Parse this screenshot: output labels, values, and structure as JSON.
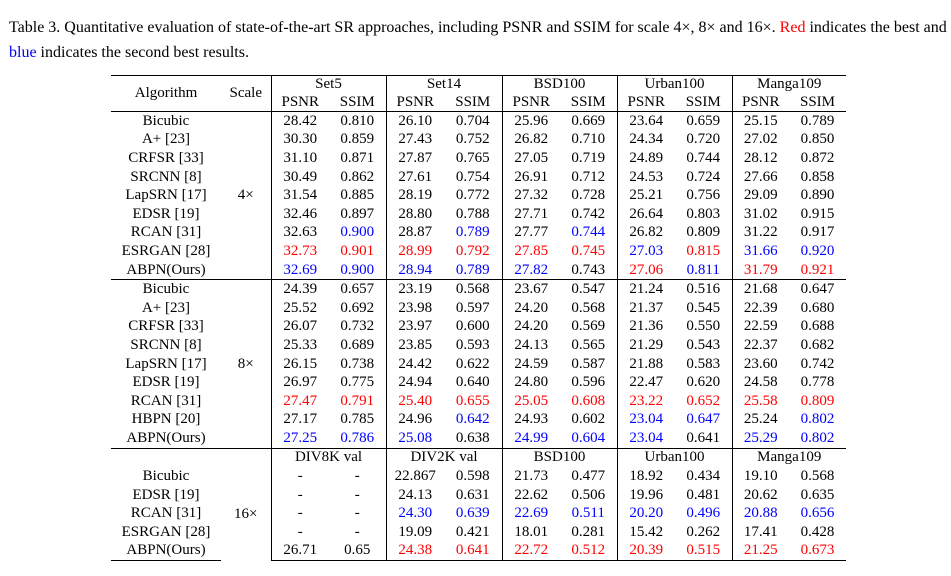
{
  "caption": {
    "prefix": "Table 3. Quantitative evaluation of state-of-the-art SR approaches, including PSNR and SSIM for scale 4×, 8× and 16×. ",
    "red_word": "Red",
    "middle": " indicates the best and ",
    "blue_word": "blue",
    "suffix": " indicates the second best results."
  },
  "colors": {
    "best": "#ff0000",
    "second": "#0000ff"
  },
  "header": {
    "algorithm": "Algorithm",
    "scale": "Scale",
    "datasets": [
      "Set5",
      "Set14",
      "BSD100",
      "Urban100",
      "Manga109"
    ],
    "metrics": [
      "PSNR",
      "SSIM"
    ]
  },
  "sections": [
    {
      "scale": "4×",
      "rows": [
        {
          "algo": "Bicubic",
          "v": [
            [
              "28.42",
              ""
            ],
            [
              "0.810",
              ""
            ],
            [
              "26.10",
              ""
            ],
            [
              "0.704",
              ""
            ],
            [
              "25.96",
              ""
            ],
            [
              "0.669",
              ""
            ],
            [
              "23.64",
              ""
            ],
            [
              "0.659",
              ""
            ],
            [
              "25.15",
              ""
            ],
            [
              "0.789",
              ""
            ]
          ]
        },
        {
          "algo": "A+ [23]",
          "v": [
            [
              "30.30",
              ""
            ],
            [
              "0.859",
              ""
            ],
            [
              "27.43",
              ""
            ],
            [
              "0.752",
              ""
            ],
            [
              "26.82",
              ""
            ],
            [
              "0.710",
              ""
            ],
            [
              "24.34",
              ""
            ],
            [
              "0.720",
              ""
            ],
            [
              "27.02",
              ""
            ],
            [
              "0.850",
              ""
            ]
          ]
        },
        {
          "algo": "CRFSR [33]",
          "v": [
            [
              "31.10",
              ""
            ],
            [
              "0.871",
              ""
            ],
            [
              "27.87",
              ""
            ],
            [
              "0.765",
              ""
            ],
            [
              "27.05",
              ""
            ],
            [
              "0.719",
              ""
            ],
            [
              "24.89",
              ""
            ],
            [
              "0.744",
              ""
            ],
            [
              "28.12",
              ""
            ],
            [
              "0.872",
              ""
            ]
          ]
        },
        {
          "algo": "SRCNN [8]",
          "v": [
            [
              "30.49",
              ""
            ],
            [
              "0.862",
              ""
            ],
            [
              "27.61",
              ""
            ],
            [
              "0.754",
              ""
            ],
            [
              "26.91",
              ""
            ],
            [
              "0.712",
              ""
            ],
            [
              "24.53",
              ""
            ],
            [
              "0.724",
              ""
            ],
            [
              "27.66",
              ""
            ],
            [
              "0.858",
              ""
            ]
          ]
        },
        {
          "algo": "LapSRN [17]",
          "v": [
            [
              "31.54",
              ""
            ],
            [
              "0.885",
              ""
            ],
            [
              "28.19",
              ""
            ],
            [
              "0.772",
              ""
            ],
            [
              "27.32",
              ""
            ],
            [
              "0.728",
              ""
            ],
            [
              "25.21",
              ""
            ],
            [
              "0.756",
              ""
            ],
            [
              "29.09",
              ""
            ],
            [
              "0.890",
              ""
            ]
          ]
        },
        {
          "algo": "EDSR [19]",
          "v": [
            [
              "32.46",
              ""
            ],
            [
              "0.897",
              ""
            ],
            [
              "28.80",
              ""
            ],
            [
              "0.788",
              ""
            ],
            [
              "27.71",
              ""
            ],
            [
              "0.742",
              ""
            ],
            [
              "26.64",
              ""
            ],
            [
              "0.803",
              ""
            ],
            [
              "31.02",
              ""
            ],
            [
              "0.915",
              ""
            ]
          ]
        },
        {
          "algo": "RCAN [31]",
          "v": [
            [
              "32.63",
              ""
            ],
            [
              "0.900",
              "b"
            ],
            [
              "28.87",
              ""
            ],
            [
              "0.789",
              "b"
            ],
            [
              "27.77",
              ""
            ],
            [
              "0.744",
              "b"
            ],
            [
              "26.82",
              ""
            ],
            [
              "0.809",
              ""
            ],
            [
              "31.22",
              ""
            ],
            [
              "0.917",
              ""
            ]
          ]
        },
        {
          "algo": "ESRGAN [28]",
          "v": [
            [
              "32.73",
              "r"
            ],
            [
              "0.901",
              "r"
            ],
            [
              "28.99",
              "r"
            ],
            [
              "0.792",
              "r"
            ],
            [
              "27.85",
              "r"
            ],
            [
              "0.745",
              "r"
            ],
            [
              "27.03",
              "b"
            ],
            [
              "0.815",
              "r"
            ],
            [
              "31.66",
              "b"
            ],
            [
              "0.920",
              "b"
            ]
          ]
        },
        {
          "algo": "ABPN(Ours)",
          "v": [
            [
              "32.69",
              "b"
            ],
            [
              "0.900",
              "b"
            ],
            [
              "28.94",
              "b"
            ],
            [
              "0.789",
              "b"
            ],
            [
              "27.82",
              "b"
            ],
            [
              "0.743",
              ""
            ],
            [
              "27.06",
              "r"
            ],
            [
              "0.811",
              "b"
            ],
            [
              "31.79",
              "r"
            ],
            [
              "0.921",
              "r"
            ]
          ]
        }
      ]
    },
    {
      "scale": "8×",
      "rows": [
        {
          "algo": "Bicubic",
          "v": [
            [
              "24.39",
              ""
            ],
            [
              "0.657",
              ""
            ],
            [
              "23.19",
              ""
            ],
            [
              "0.568",
              ""
            ],
            [
              "23.67",
              ""
            ],
            [
              "0.547",
              ""
            ],
            [
              "21.24",
              ""
            ],
            [
              "0.516",
              ""
            ],
            [
              "21.68",
              ""
            ],
            [
              "0.647",
              ""
            ]
          ]
        },
        {
          "algo": "A+ [23]",
          "v": [
            [
              "25.52",
              ""
            ],
            [
              "0.692",
              ""
            ],
            [
              "23.98",
              ""
            ],
            [
              "0.597",
              ""
            ],
            [
              "24.20",
              ""
            ],
            [
              "0.568",
              ""
            ],
            [
              "21.37",
              ""
            ],
            [
              "0.545",
              ""
            ],
            [
              "22.39",
              ""
            ],
            [
              "0.680",
              ""
            ]
          ]
        },
        {
          "algo": "CRFSR [33]",
          "v": [
            [
              "26.07",
              ""
            ],
            [
              "0.732",
              ""
            ],
            [
              "23.97",
              ""
            ],
            [
              "0.600",
              ""
            ],
            [
              "24.20",
              ""
            ],
            [
              "0.569",
              ""
            ],
            [
              "21.36",
              ""
            ],
            [
              "0.550",
              ""
            ],
            [
              "22.59",
              ""
            ],
            [
              "0.688",
              ""
            ]
          ]
        },
        {
          "algo": "SRCNN [8]",
          "v": [
            [
              "25.33",
              ""
            ],
            [
              "0.689",
              ""
            ],
            [
              "23.85",
              ""
            ],
            [
              "0.593",
              ""
            ],
            [
              "24.13",
              ""
            ],
            [
              "0.565",
              ""
            ],
            [
              "21.29",
              ""
            ],
            [
              "0.543",
              ""
            ],
            [
              "22.37",
              ""
            ],
            [
              "0.682",
              ""
            ]
          ]
        },
        {
          "algo": "LapSRN [17]",
          "v": [
            [
              "26.15",
              ""
            ],
            [
              "0.738",
              ""
            ],
            [
              "24.42",
              ""
            ],
            [
              "0.622",
              ""
            ],
            [
              "24.59",
              ""
            ],
            [
              "0.587",
              ""
            ],
            [
              "21.88",
              ""
            ],
            [
              "0.583",
              ""
            ],
            [
              "23.60",
              ""
            ],
            [
              "0.742",
              ""
            ]
          ]
        },
        {
          "algo": "EDSR [19]",
          "v": [
            [
              "26.97",
              ""
            ],
            [
              "0.775",
              ""
            ],
            [
              "24.94",
              ""
            ],
            [
              "0.640",
              ""
            ],
            [
              "24.80",
              ""
            ],
            [
              "0.596",
              ""
            ],
            [
              "22.47",
              ""
            ],
            [
              "0.620",
              ""
            ],
            [
              "24.58",
              ""
            ],
            [
              "0.778",
              ""
            ]
          ]
        },
        {
          "algo": "RCAN [31]",
          "v": [
            [
              "27.47",
              "r"
            ],
            [
              "0.791",
              "r"
            ],
            [
              "25.40",
              "r"
            ],
            [
              "0.655",
              "r"
            ],
            [
              "25.05",
              "r"
            ],
            [
              "0.608",
              "r"
            ],
            [
              "23.22",
              "r"
            ],
            [
              "0.652",
              "r"
            ],
            [
              "25.58",
              "r"
            ],
            [
              "0.809",
              "r"
            ]
          ]
        },
        {
          "algo": "HBPN [20]",
          "v": [
            [
              "27.17",
              ""
            ],
            [
              "0.785",
              ""
            ],
            [
              "24.96",
              ""
            ],
            [
              "0.642",
              "b"
            ],
            [
              "24.93",
              ""
            ],
            [
              "0.602",
              ""
            ],
            [
              "23.04",
              "b"
            ],
            [
              "0.647",
              "b"
            ],
            [
              "25.24",
              ""
            ],
            [
              "0.802",
              "b"
            ]
          ]
        },
        {
          "algo": "ABPN(Ours)",
          "v": [
            [
              "27.25",
              "b"
            ],
            [
              "0.786",
              "b"
            ],
            [
              "25.08",
              "b"
            ],
            [
              "0.638",
              ""
            ],
            [
              "24.99",
              "b"
            ],
            [
              "0.604",
              "b"
            ],
            [
              "23.04",
              "b"
            ],
            [
              "0.641",
              ""
            ],
            [
              "25.29",
              "b"
            ],
            [
              "0.802",
              "b"
            ]
          ]
        }
      ]
    },
    {
      "scale": "16×",
      "datasets": [
        "DIV8K val",
        "DIV2K val",
        "BSD100",
        "Urban100",
        "Manga109"
      ],
      "rows": [
        {
          "algo": "Bicubic",
          "v": [
            [
              "-",
              ""
            ],
            [
              "-",
              ""
            ],
            [
              "22.867",
              ""
            ],
            [
              "0.598",
              ""
            ],
            [
              "21.73",
              ""
            ],
            [
              "0.477",
              ""
            ],
            [
              "18.92",
              ""
            ],
            [
              "0.434",
              ""
            ],
            [
              "19.10",
              ""
            ],
            [
              "0.568",
              ""
            ]
          ]
        },
        {
          "algo": "EDSR [19]",
          "v": [
            [
              "-",
              ""
            ],
            [
              "-",
              ""
            ],
            [
              "24.13",
              ""
            ],
            [
              "0.631",
              ""
            ],
            [
              "22.62",
              ""
            ],
            [
              "0.506",
              ""
            ],
            [
              "19.96",
              ""
            ],
            [
              "0.481",
              ""
            ],
            [
              "20.62",
              ""
            ],
            [
              "0.635",
              ""
            ]
          ]
        },
        {
          "algo": "RCAN [31]",
          "v": [
            [
              "-",
              ""
            ],
            [
              "-",
              ""
            ],
            [
              "24.30",
              "b"
            ],
            [
              "0.639",
              "b"
            ],
            [
              "22.69",
              "b"
            ],
            [
              "0.511",
              "b"
            ],
            [
              "20.20",
              "b"
            ],
            [
              "0.496",
              "b"
            ],
            [
              "20.88",
              "b"
            ],
            [
              "0.656",
              "b"
            ]
          ]
        },
        {
          "algo": "ESRGAN [28]",
          "v": [
            [
              "-",
              ""
            ],
            [
              "-",
              ""
            ],
            [
              "19.09",
              ""
            ],
            [
              "0.421",
              ""
            ],
            [
              "18.01",
              ""
            ],
            [
              "0.281",
              ""
            ],
            [
              "15.42",
              ""
            ],
            [
              "0.262",
              ""
            ],
            [
              "17.41",
              ""
            ],
            [
              "0.428",
              ""
            ]
          ]
        },
        {
          "algo": "ABPN(Ours)",
          "v": [
            [
              "26.71",
              ""
            ],
            [
              "0.65",
              ""
            ],
            [
              "24.38",
              "r"
            ],
            [
              "0.641",
              "r"
            ],
            [
              "22.72",
              "r"
            ],
            [
              "0.512",
              "r"
            ],
            [
              "20.39",
              "r"
            ],
            [
              "0.515",
              "r"
            ],
            [
              "21.25",
              "r"
            ],
            [
              "0.673",
              "r"
            ]
          ]
        }
      ]
    }
  ]
}
